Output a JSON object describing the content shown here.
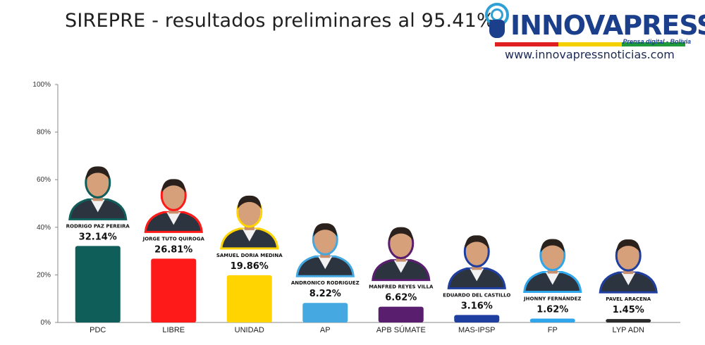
{
  "header": {
    "title": "SIREPRE - resultados preliminares al 95.41%"
  },
  "logo": {
    "word": "INNOVAPRESS",
    "tagline": "Prensa digital - Bolivia",
    "url": "www.innovapressnoticias.com",
    "stripe_colors": [
      "#e02020",
      "#f5d000",
      "#1f9a3a"
    ]
  },
  "chart_data": {
    "type": "bar",
    "title": "SIREPRE - resultados preliminares al 95.41%",
    "categories": [
      "PDC",
      "LIBRE",
      "UNIDAD",
      "AP",
      "APB SÚMATE",
      "MAS-IPSP",
      "FP",
      "LYP ADN"
    ],
    "values": [
      32.14,
      26.81,
      19.86,
      8.22,
      6.62,
      3.16,
      1.62,
      1.45
    ],
    "value_labels": [
      "32.14%",
      "26.81%",
      "19.86%",
      "8.22%",
      "6.62%",
      "3.16%",
      "1.62%",
      "1.45%"
    ],
    "colors": [
      "#0f5e5a",
      "#ff1a1a",
      "#ffd400",
      "#45a8e0",
      "#5a1e6e",
      "#1f3fa0",
      "#2fa6ec",
      "#2a2a2a"
    ],
    "candidates": [
      "RODRIGO PAZ PEREIRA",
      "JORGE TUTO QUIROGA",
      "SAMUEL DORIA MEDINA",
      "ANDRONICO RODRIGUEZ",
      "MANFRED REYES VILLA",
      "EDUARDO DEL CASTILLO",
      "JHONNY FERNÁNDEZ",
      "PAVEL ARACENA"
    ],
    "outline_colors": [
      "#0f5e5a",
      "#ff1a1a",
      "#ffd400",
      "#45a8e0",
      "#5a1e6e",
      "#1f3fa0",
      "#2fa6ec",
      "#1f3fa0"
    ],
    "y_ticks": [
      "0%",
      "20%",
      "40%",
      "60%",
      "80%",
      "100%"
    ],
    "ylim": [
      0,
      100
    ],
    "grid": false,
    "legend": "none"
  }
}
